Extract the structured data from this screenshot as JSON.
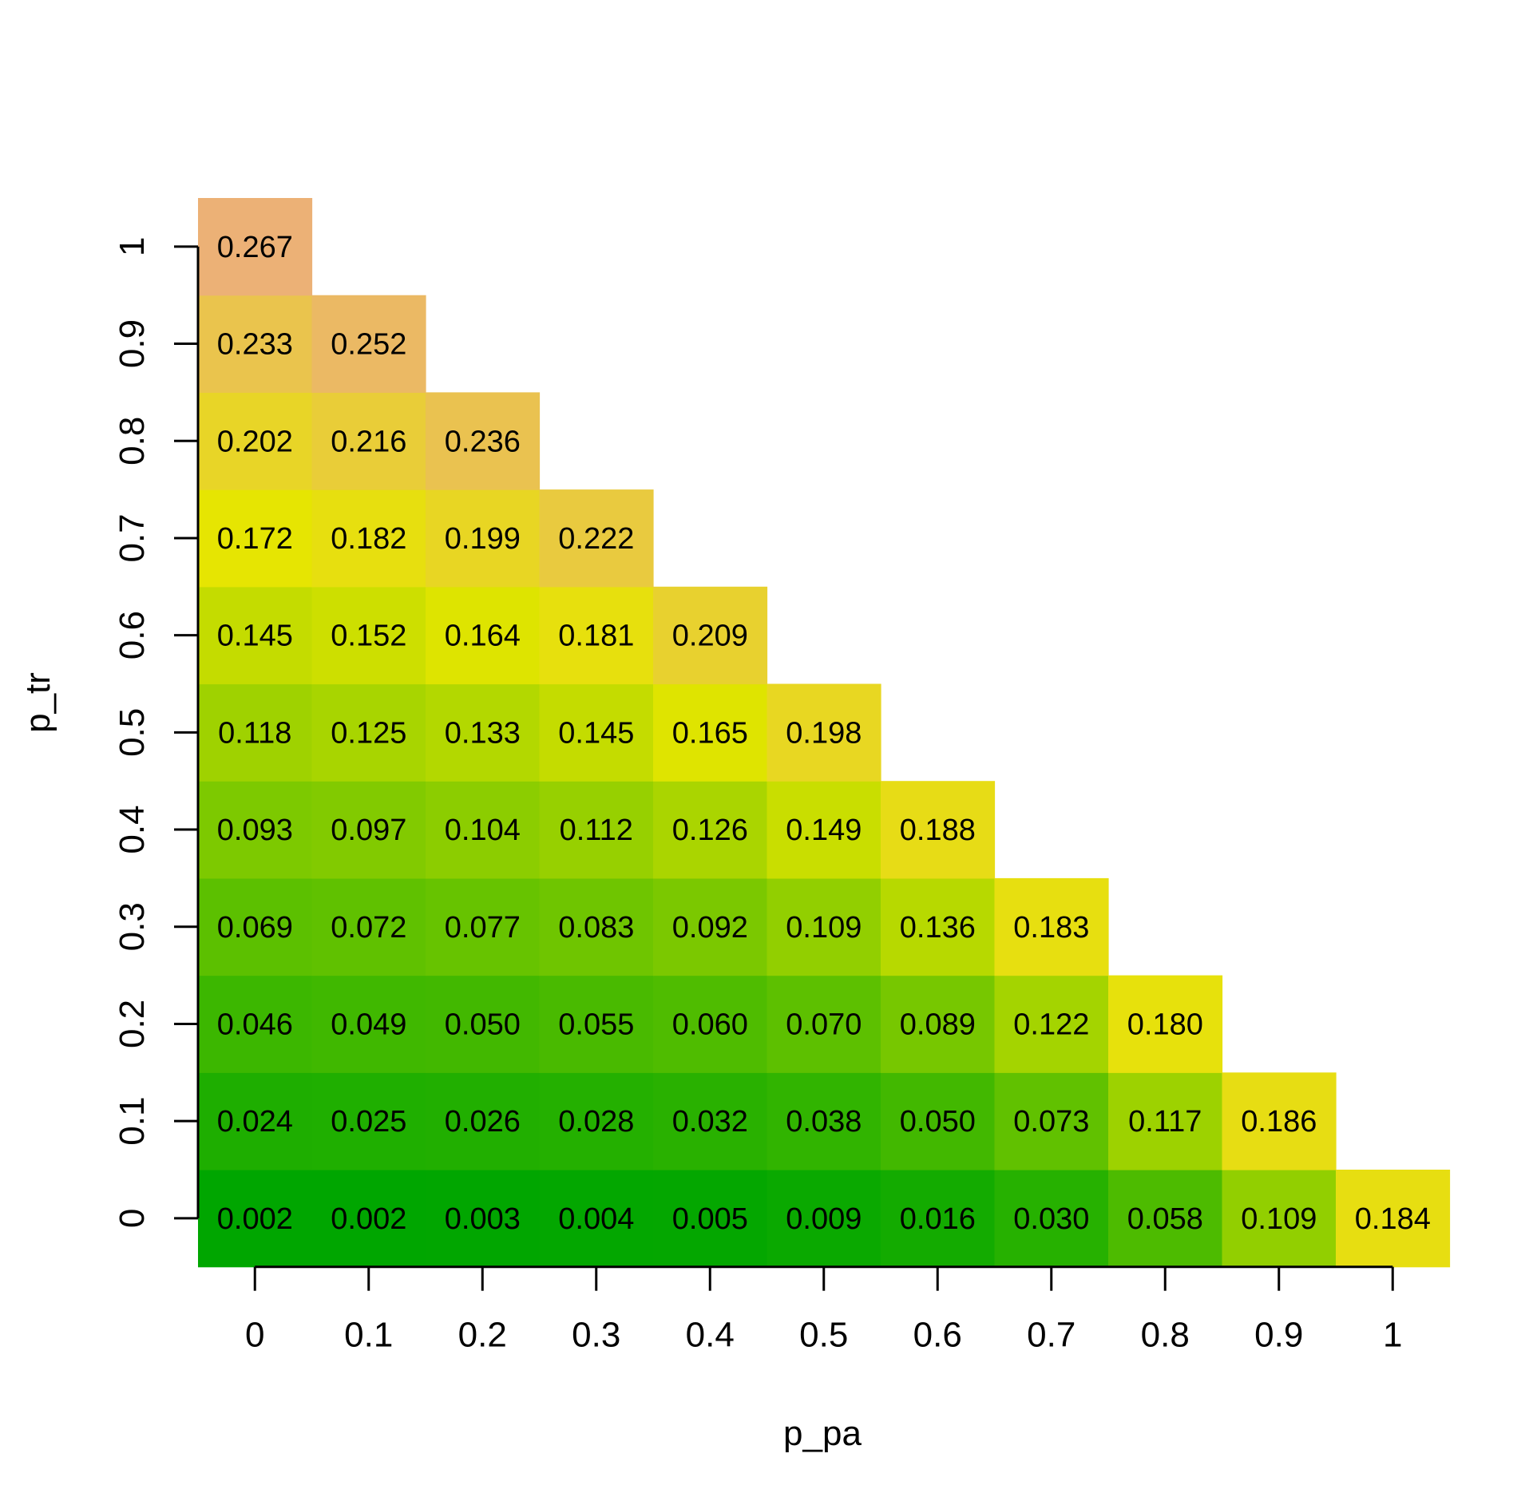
{
  "chart_data": {
    "type": "heatmap",
    "xlabel": "p_pa",
    "ylabel": "p_tr",
    "x_ticks": [
      "0",
      "0.1",
      "0.2",
      "0.3",
      "0.4",
      "0.5",
      "0.6",
      "0.7",
      "0.8",
      "0.9",
      "1"
    ],
    "y_ticks": [
      "0",
      "0.1",
      "0.2",
      "0.3",
      "0.4",
      "0.5",
      "0.6",
      "0.7",
      "0.8",
      "0.9",
      "1"
    ],
    "xlim": [
      0,
      1
    ],
    "ylim": [
      0,
      1
    ],
    "grid": false,
    "color_scale": [
      "#00a600",
      "#e6e600",
      "#ecb176"
    ],
    "rows": [
      {
        "p_tr": 0,
        "values": [
          0.002,
          0.002,
          0.003,
          0.004,
          0.005,
          0.009,
          0.016,
          0.03,
          0.058,
          0.109,
          0.184
        ],
        "labels": [
          "0.002",
          "0.002",
          "0.003",
          "0.004",
          "0.005",
          "0.009",
          "0.016",
          "0.030",
          "0.058",
          "0.109",
          "0.184"
        ]
      },
      {
        "p_tr": 0.1,
        "values": [
          0.024,
          0.025,
          0.026,
          0.028,
          0.032,
          0.038,
          0.05,
          0.073,
          0.117,
          0.186
        ],
        "labels": [
          "0.024",
          "0.025",
          "0.026",
          "0.028",
          "0.032",
          "0.038",
          "0.050",
          "0.073",
          "0.117",
          "0.186"
        ]
      },
      {
        "p_tr": 0.2,
        "values": [
          0.046,
          0.049,
          0.05,
          0.055,
          0.06,
          0.07,
          0.089,
          0.122,
          0.18
        ],
        "labels": [
          "0.046",
          "0.049",
          "0.050",
          "0.055",
          "0.060",
          "0.070",
          "0.089",
          "0.122",
          "0.180"
        ]
      },
      {
        "p_tr": 0.3,
        "values": [
          0.069,
          0.072,
          0.077,
          0.083,
          0.092,
          0.109,
          0.136,
          0.183
        ],
        "labels": [
          "0.069",
          "0.072",
          "0.077",
          "0.083",
          "0.092",
          "0.109",
          "0.136",
          "0.183"
        ]
      },
      {
        "p_tr": 0.4,
        "values": [
          0.093,
          0.097,
          0.104,
          0.112,
          0.126,
          0.149,
          0.188
        ],
        "labels": [
          "0.093",
          "0.097",
          "0.104",
          "0.112",
          "0.126",
          "0.149",
          "0.188"
        ]
      },
      {
        "p_tr": 0.5,
        "values": [
          0.118,
          0.125,
          0.133,
          0.145,
          0.165,
          0.198
        ],
        "labels": [
          "0.118",
          "0.125",
          "0.133",
          "0.145",
          "0.165",
          "0.198"
        ]
      },
      {
        "p_tr": 0.6,
        "values": [
          0.145,
          0.152,
          0.164,
          0.181,
          0.209
        ],
        "labels": [
          "0.145",
          "0.152",
          "0.164",
          "0.181",
          "0.209"
        ]
      },
      {
        "p_tr": 0.7,
        "values": [
          0.172,
          0.182,
          0.199,
          0.222
        ],
        "labels": [
          "0.172",
          "0.182",
          "0.199",
          "0.222"
        ]
      },
      {
        "p_tr": 0.8,
        "values": [
          0.202,
          0.216,
          0.236
        ],
        "labels": [
          "0.202",
          "0.216",
          "0.236"
        ]
      },
      {
        "p_tr": 0.9,
        "values": [
          0.233,
          0.252
        ],
        "labels": [
          "0.233",
          "0.252"
        ]
      },
      {
        "p_tr": 1,
        "values": [
          0.267
        ],
        "labels": [
          "0.267"
        ]
      }
    ]
  }
}
